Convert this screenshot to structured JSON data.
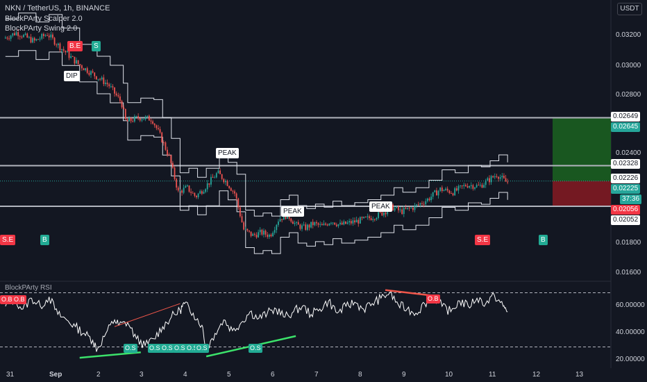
{
  "header": {
    "symbol_line": "NKN / TetherUS, 1h, BINANCE",
    "indicator_1": "BlockPArty Scalper 2.0",
    "indicator_2": "BlockPArty Swing 2.0",
    "currency": "USDT",
    "rsi_title": "BlockPArty RSI"
  },
  "colors": {
    "background": "#131722",
    "up": "#26a69a",
    "down": "#ef5350",
    "tp_zone": "#1b5e20",
    "sl_zone": "#801922",
    "bullish_divergence": "#3ce36b",
    "bearish_divergence": "#f0564a",
    "level_line": "#b2b5be"
  },
  "price_tags": [
    {
      "label": "0.02649",
      "style": "white"
    },
    {
      "label": "0.02645",
      "style": "green"
    },
    {
      "label": "0.02328",
      "style": "white"
    },
    {
      "label": "0.02226",
      "style": "white"
    },
    {
      "label": "0.02225",
      "style": "green"
    },
    {
      "label": "37:36",
      "style": "green"
    },
    {
      "label": "0.02056",
      "style": "red"
    },
    {
      "label": "0.02052",
      "style": "white"
    }
  ],
  "markers": {
    "be": "B.E",
    "s": "S",
    "dip": "DIP",
    "peak_1": "PEAK",
    "peak_2": "PEAK",
    "peak_3": "PEAK",
    "se_left": "S.E",
    "b_left": "B",
    "se_right": "S.E",
    "b_right": "B"
  },
  "rsi_signals": {
    "ob_1": "O.B",
    "ob_2": "O.B",
    "ob_3": "O.B",
    "os_1": "O.S",
    "os_2": "O.S",
    "os_3": "O.S",
    "os_4": "O.S",
    "os_5": "O.S",
    "os_6": "O.S",
    "os_7": "O.S"
  },
  "chart_data": [
    {
      "type": "candlestick",
      "title": "NKN / TetherUS, 1h, BINANCE",
      "x_ticks": [
        "31",
        "Sep",
        "2",
        "3",
        "4",
        "5",
        "6",
        "7",
        "8",
        "9",
        "10",
        "11",
        "12",
        "13"
      ],
      "y_ticks": [
        "0.03200",
        "0.03000",
        "0.02800",
        "0.02400",
        "0.01800",
        "0.01600"
      ],
      "ylim": [
        0.0152,
        0.0331
      ],
      "horizontal_levels": [
        0.02649,
        0.02328,
        0.02056
      ],
      "last_price": 0.02225,
      "take_profit": 0.02645,
      "stop_loss": 0.02052,
      "trend_shape": [
        [
          30.9,
          0.0318
        ],
        [
          31.2,
          0.0322
        ],
        [
          31.6,
          0.0316
        ],
        [
          31.9,
          0.0321
        ],
        [
          32.2,
          0.0312
        ],
        [
          32.6,
          0.0301
        ],
        [
          33.0,
          0.0293
        ],
        [
          33.3,
          0.0287
        ],
        [
          33.6,
          0.0275
        ],
        [
          33.7,
          0.0262
        ],
        [
          34.0,
          0.0265
        ],
        [
          34.3,
          0.0264
        ],
        [
          34.5,
          0.0252
        ],
        [
          34.7,
          0.0238
        ],
        [
          34.9,
          0.0215
        ],
        [
          35.1,
          0.0218
        ],
        [
          35.3,
          0.0212
        ],
        [
          35.5,
          0.0218
        ],
        [
          35.8,
          0.0228
        ],
        [
          36.0,
          0.0222
        ],
        [
          36.2,
          0.0214
        ],
        [
          36.4,
          0.019
        ],
        [
          36.6,
          0.0186
        ],
        [
          36.8,
          0.0188
        ],
        [
          37.0,
          0.0186
        ],
        [
          37.2,
          0.0197
        ],
        [
          37.4,
          0.02
        ],
        [
          37.6,
          0.0193
        ],
        [
          37.8,
          0.0191
        ],
        [
          38.0,
          0.0194
        ],
        [
          38.2,
          0.0192
        ],
        [
          38.4,
          0.0196
        ],
        [
          38.6,
          0.0193
        ],
        [
          38.9,
          0.0195
        ],
        [
          39.2,
          0.0197
        ],
        [
          39.5,
          0.02
        ],
        [
          39.8,
          0.0205
        ],
        [
          40.0,
          0.0202
        ],
        [
          40.3,
          0.0205
        ],
        [
          40.6,
          0.021
        ],
        [
          40.9,
          0.0217
        ],
        [
          41.2,
          0.0215
        ],
        [
          41.5,
          0.022
        ],
        [
          41.8,
          0.0219
        ],
        [
          42.0,
          0.0223
        ],
        [
          42.2,
          0.0227
        ],
        [
          42.4,
          0.0222
        ]
      ]
    },
    {
      "type": "line",
      "title": "BlockPArty RSI",
      "y_ticks": [
        "60.00000",
        "40.00000",
        "20.00000"
      ],
      "ylim": [
        15,
        81
      ],
      "overbought": 70,
      "oversold": 30,
      "series": [
        {
          "values": [
            [
              30.9,
              60
            ],
            [
              31.1,
              65
            ],
            [
              31.3,
              58
            ],
            [
              31.5,
              66
            ],
            [
              31.7,
              60
            ],
            [
              31.9,
              67
            ],
            [
              32.1,
              54
            ],
            [
              32.3,
              50
            ],
            [
              32.5,
              45
            ],
            [
              32.7,
              40
            ],
            [
              32.9,
              35
            ],
            [
              33.0,
              28
            ],
            [
              33.2,
              40
            ],
            [
              33.4,
              50
            ],
            [
              33.5,
              46
            ],
            [
              33.7,
              48
            ],
            [
              33.9,
              36
            ],
            [
              34.1,
              31
            ],
            [
              34.3,
              36
            ],
            [
              34.5,
              45
            ],
            [
              34.7,
              52
            ],
            [
              34.9,
              57
            ],
            [
              35.0,
              62
            ],
            [
              35.2,
              55
            ],
            [
              35.4,
              46
            ],
            [
              35.5,
              28
            ],
            [
              35.7,
              40
            ],
            [
              35.9,
              50
            ],
            [
              36.1,
              42
            ],
            [
              36.3,
              48
            ],
            [
              36.5,
              56
            ],
            [
              36.7,
              51
            ],
            [
              36.9,
              55
            ],
            [
              37.1,
              58
            ],
            [
              37.3,
              52
            ],
            [
              37.5,
              56
            ],
            [
              37.7,
              60
            ],
            [
              37.9,
              54
            ],
            [
              38.1,
              58
            ],
            [
              38.3,
              64
            ],
            [
              38.5,
              55
            ],
            [
              38.7,
              60
            ],
            [
              38.9,
              63
            ],
            [
              39.1,
              58
            ],
            [
              39.3,
              62
            ],
            [
              39.5,
              66
            ],
            [
              39.7,
              70
            ],
            [
              39.9,
              61
            ],
            [
              40.1,
              58
            ],
            [
              40.3,
              55
            ],
            [
              40.5,
              62
            ],
            [
              40.7,
              68
            ],
            [
              40.9,
              60
            ],
            [
              41.1,
              56
            ],
            [
              41.3,
              64
            ],
            [
              41.5,
              60
            ],
            [
              41.7,
              66
            ],
            [
              41.9,
              62
            ],
            [
              42.1,
              68
            ],
            [
              42.3,
              60
            ],
            [
              42.4,
              56
            ]
          ]
        }
      ],
      "bullish_divergences": [
        [
          [
            32.6,
            22
          ],
          [
            34.0,
            26
          ]
        ],
        [
          [
            35.5,
            23
          ],
          [
            37.55,
            38
          ]
        ]
      ],
      "bearish_divergences": [
        [
          [
            33.4,
            45
          ],
          [
            34.9,
            62
          ]
        ],
        [
          [
            39.6,
            72
          ],
          [
            40.65,
            68
          ]
        ]
      ]
    }
  ]
}
